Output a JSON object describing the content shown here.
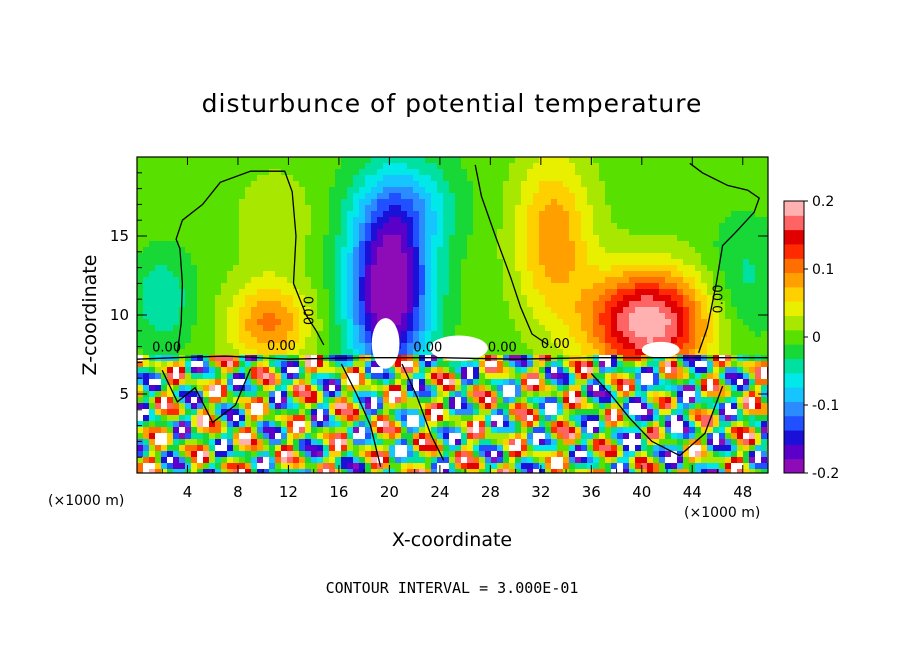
{
  "chart_data": {
    "type": "heatmap",
    "title": "disturbunce of potential temperature",
    "xlabel": "X-coordinate",
    "ylabel": "Z-coordinate",
    "x_unit": "(×1000 m)",
    "z_unit": "(×1000 m)",
    "xlim": [
      0,
      50
    ],
    "ylim": [
      0,
      20
    ],
    "x_ticks": [
      "4",
      "8",
      "12",
      "16",
      "20",
      "24",
      "28",
      "32",
      "36",
      "40",
      "44",
      "48"
    ],
    "y_ticks": [
      "5",
      "10",
      "15"
    ],
    "contour_interval_text": "CONTOUR INTERVAL = 3.000E-01",
    "contour_zero_label": "0.00",
    "colorbar": {
      "range": [
        -0.2,
        0.2
      ],
      "tick_labels": [
        "0.2",
        "0.1",
        "0",
        "-0.1",
        "-0.2"
      ],
      "tick_values": [
        0.2,
        0.1,
        0,
        -0.1,
        -0.2
      ],
      "colors": [
        "#8e0cb8",
        "#5a00c8",
        "#1a10d8",
        "#2050ff",
        "#2a8cff",
        "#16c4ff",
        "#00e8e8",
        "#00e0a0",
        "#18d838",
        "#58e000",
        "#a8e800",
        "#e8f000",
        "#ffd000",
        "#ffa000",
        "#ff6e00",
        "#ff2a00",
        "#e00000",
        "#ff6464",
        "#ffb0b0"
      ]
    },
    "features": [
      {
        "type": "negative_anomaly",
        "x_center": 20,
        "z_center": 11,
        "min_value": -0.2
      },
      {
        "type": "positive_anomaly",
        "x_center": 41,
        "z_center": 9,
        "max_value": 0.2
      },
      {
        "type": "positive_anomaly",
        "x_center": 10,
        "z_center": 9,
        "max_value": 0.1
      },
      {
        "type": "turbulent_layer",
        "z_range": [
          0,
          7.5
        ]
      }
    ]
  }
}
